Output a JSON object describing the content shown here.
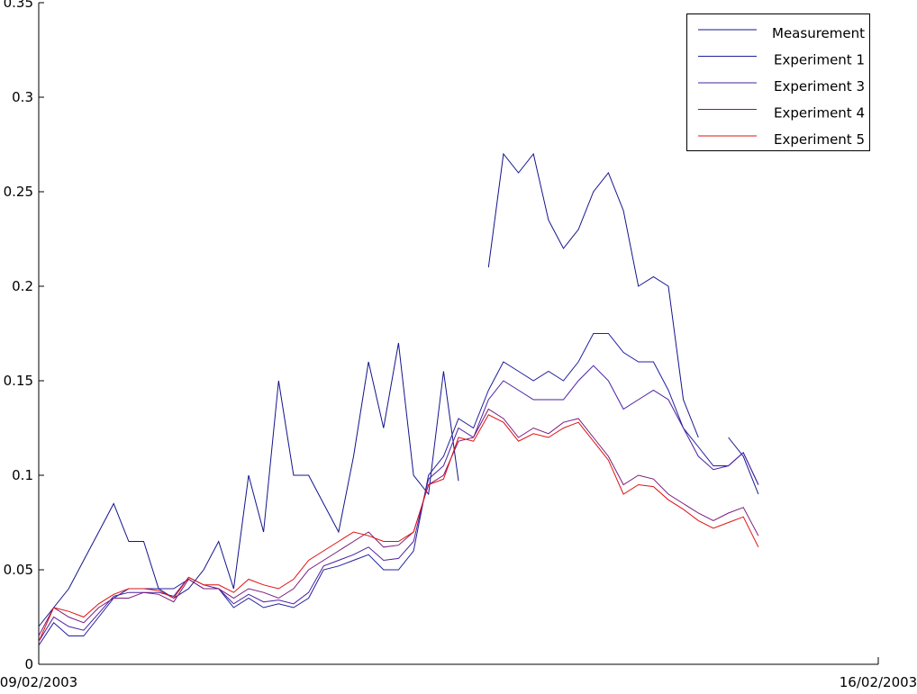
{
  "chart_data": {
    "type": "line",
    "x": [
      0,
      3,
      6,
      9,
      12,
      15,
      18,
      21,
      24,
      27,
      30,
      33,
      36,
      39,
      42,
      45,
      48,
      51,
      54,
      57,
      60,
      63,
      66,
      69,
      72,
      75,
      78,
      81,
      84,
      87,
      90,
      93,
      96,
      99,
      102,
      105,
      108,
      111,
      114,
      117,
      120,
      123,
      126,
      129,
      132,
      135,
      138,
      141,
      144
    ],
    "xlim": [
      0,
      168
    ],
    "xticks": [
      {
        "value": 0,
        "label": "09/02/2003"
      },
      {
        "value": 168,
        "label": "16/02/2003"
      }
    ],
    "ylim": [
      0,
      0.35
    ],
    "yticks": [
      0,
      0.05,
      0.1,
      0.15,
      0.2,
      0.25,
      0.3,
      0.35
    ],
    "legend": "upper right",
    "series": [
      {
        "name": "Measurement",
        "color": "#14148c",
        "values": [
          0.02,
          0.03,
          0.04,
          0.055,
          0.07,
          0.085,
          0.065,
          0.065,
          0.04,
          0.035,
          0.04,
          0.05,
          0.065,
          0.04,
          0.1,
          0.07,
          0.15,
          0.1,
          0.1,
          0.085,
          0.07,
          0.11,
          0.16,
          0.125,
          0.17,
          0.1,
          0.09,
          0.155,
          0.097,
          null,
          0.21,
          0.27,
          0.26,
          0.27,
          0.235,
          0.22,
          0.23,
          0.25,
          0.26,
          0.24,
          0.2,
          0.205,
          0.2,
          0.14,
          0.12,
          null,
          0.12,
          0.11,
          0.09
        ]
      },
      {
        "name": "Experiment 1",
        "color": "#2020a0",
        "values": [
          0.01,
          0.022,
          0.015,
          0.015,
          0.025,
          0.035,
          0.04,
          0.04,
          0.04,
          0.04,
          0.045,
          0.04,
          0.04,
          0.03,
          0.035,
          0.03,
          0.032,
          0.03,
          0.035,
          0.05,
          0.052,
          0.055,
          0.058,
          0.05,
          0.05,
          0.06,
          0.1,
          0.11,
          0.13,
          0.125,
          0.145,
          0.16,
          0.155,
          0.15,
          0.155,
          0.15,
          0.16,
          0.175,
          0.175,
          0.165,
          0.16,
          0.16,
          0.145,
          0.125,
          0.115,
          0.105,
          0.105,
          0.112,
          0.095
        ]
      },
      {
        "name": "Experiment 3",
        "color": "#4b1fa0",
        "values": [
          0.012,
          0.025,
          0.02,
          0.018,
          0.027,
          0.036,
          0.038,
          0.038,
          0.038,
          0.036,
          0.046,
          0.042,
          0.04,
          0.032,
          0.037,
          0.033,
          0.034,
          0.032,
          0.038,
          0.052,
          0.055,
          0.058,
          0.062,
          0.055,
          0.056,
          0.065,
          0.098,
          0.105,
          0.125,
          0.12,
          0.14,
          0.15,
          0.145,
          0.14,
          0.14,
          0.14,
          0.15,
          0.158,
          0.15,
          0.135,
          0.14,
          0.145,
          0.14,
          0.125,
          0.11,
          0.103,
          0.105,
          0.112,
          0.095
        ]
      },
      {
        "name": "Experiment 4",
        "color": "#7a1a7a",
        "values": [
          0.015,
          0.03,
          0.025,
          0.022,
          0.03,
          0.035,
          0.035,
          0.038,
          0.037,
          0.033,
          0.045,
          0.04,
          0.04,
          0.035,
          0.04,
          0.038,
          0.035,
          0.04,
          0.05,
          0.055,
          0.06,
          0.065,
          0.07,
          0.062,
          0.063,
          0.07,
          0.095,
          0.1,
          0.118,
          0.12,
          0.135,
          0.13,
          0.12,
          0.125,
          0.122,
          0.128,
          0.13,
          0.12,
          0.11,
          0.095,
          0.1,
          0.098,
          0.09,
          0.085,
          0.08,
          0.076,
          0.08,
          0.083,
          0.068
        ]
      },
      {
        "name": "Experiment 5",
        "color": "#e01010",
        "values": [
          0.012,
          0.03,
          0.028,
          0.025,
          0.032,
          0.037,
          0.04,
          0.04,
          0.039,
          0.035,
          0.046,
          0.042,
          0.042,
          0.038,
          0.045,
          0.042,
          0.04,
          0.045,
          0.055,
          0.06,
          0.065,
          0.07,
          0.068,
          0.065,
          0.065,
          0.07,
          0.095,
          0.098,
          0.12,
          0.118,
          0.132,
          0.128,
          0.118,
          0.122,
          0.12,
          0.125,
          0.128,
          0.118,
          0.108,
          0.09,
          0.095,
          0.094,
          0.087,
          0.082,
          0.076,
          0.072,
          0.075,
          0.078,
          0.062
        ]
      }
    ]
  }
}
